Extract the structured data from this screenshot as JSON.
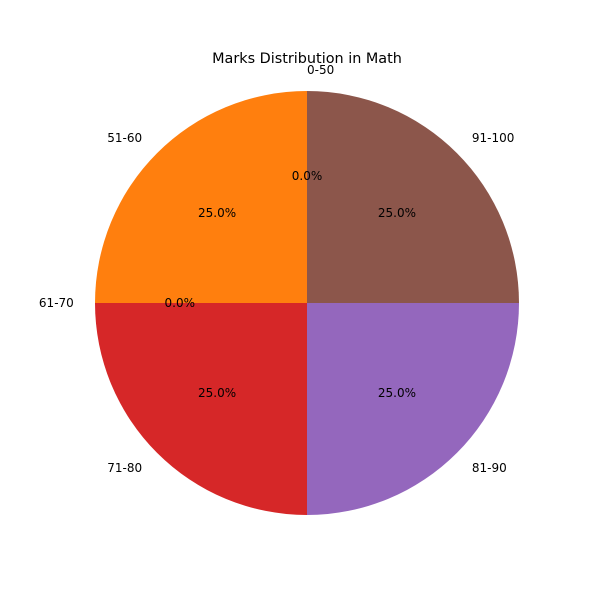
{
  "chart_data": {
    "type": "pie",
    "title": "Marks Distribution in Math",
    "categories": [
      "0-50",
      "51-60",
      "61-70",
      "71-80",
      "81-90",
      "91-100"
    ],
    "values": [
      0,
      25,
      0,
      25,
      25,
      25
    ],
    "percent_labels": [
      "0.0%",
      "25.0%",
      "0.0%",
      "25.0%",
      "25.0%",
      "25.0%"
    ],
    "colors": [
      "#1f77b4",
      "#ff7f0e",
      "#2ca02c",
      "#d62728",
      "#9467bd",
      "#8c564b"
    ],
    "start_angle_deg": 90,
    "direction": "counterclockwise",
    "legend": "none"
  }
}
